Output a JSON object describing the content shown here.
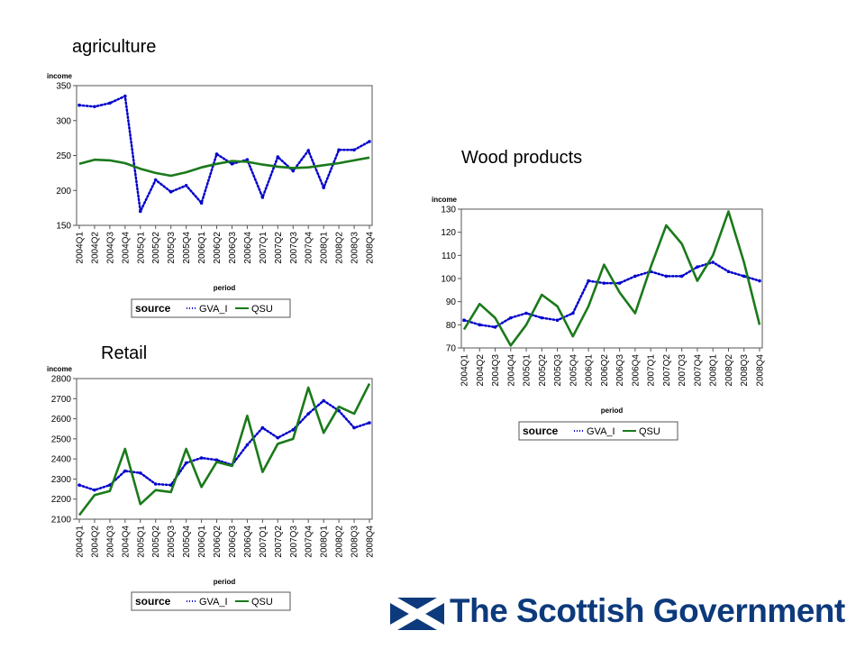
{
  "titles": {
    "agriculture": "agriculture",
    "wood": "Wood products",
    "retail": "Retail"
  },
  "logo": {
    "text": "The Scottish Government",
    "color": "#0d3a7c"
  },
  "colors": {
    "gva": "#0000cc",
    "qsu": "#1a7a1a"
  },
  "chart_data": [
    {
      "type": "line",
      "title": "agriculture",
      "ylabel": "income",
      "xlabel": "period",
      "categories": [
        "2004Q1",
        "2004Q2",
        "2004Q3",
        "2004Q4",
        "2005Q1",
        "2005Q2",
        "2005Q3",
        "2005Q4",
        "2006Q1",
        "2006Q2",
        "2006Q3",
        "2006Q4",
        "2007Q1",
        "2007Q2",
        "2007Q3",
        "2007Q4",
        "2008Q1",
        "2008Q2",
        "2008Q3",
        "2008Q4"
      ],
      "ylim": [
        150,
        350
      ],
      "yticks": [
        150,
        200,
        250,
        300,
        350
      ],
      "legend_title": "source",
      "series": [
        {
          "name": "GVA_I",
          "style": "dotted",
          "values": [
            322,
            320,
            325,
            335,
            170,
            215,
            198,
            207,
            182,
            252,
            238,
            244,
            190,
            248,
            228,
            257,
            204,
            258,
            258,
            270
          ]
        },
        {
          "name": "QSU",
          "style": "solid",
          "values": [
            238,
            244,
            243,
            239,
            231,
            225,
            221,
            226,
            233,
            238,
            242,
            241,
            237,
            234,
            232,
            233,
            236,
            239,
            243,
            247
          ]
        }
      ]
    },
    {
      "type": "line",
      "title": "Wood products",
      "ylabel": "income",
      "xlabel": "period",
      "categories": [
        "2004Q1",
        "2004Q2",
        "2004Q3",
        "2004Q4",
        "2005Q1",
        "2005Q2",
        "2005Q3",
        "2005Q4",
        "2006Q1",
        "2006Q2",
        "2006Q3",
        "2006Q4",
        "2007Q1",
        "2007Q2",
        "2007Q3",
        "2007Q4",
        "2008Q1",
        "2008Q2",
        "2008Q3",
        "2008Q4"
      ],
      "ylim": [
        70,
        130
      ],
      "yticks": [
        70,
        80,
        90,
        100,
        110,
        120,
        130
      ],
      "legend_title": "source",
      "series": [
        {
          "name": "GVA_I",
          "style": "dotted",
          "values": [
            82,
            80,
            79,
            83,
            85,
            83,
            82,
            85,
            99,
            98,
            98,
            101,
            103,
            101,
            101,
            105,
            107,
            103,
            101,
            99
          ]
        },
        {
          "name": "QSU",
          "style": "solid",
          "values": [
            78,
            89,
            83,
            71,
            80,
            93,
            88,
            75,
            88,
            106,
            94,
            85,
            105,
            123,
            115,
            99,
            110,
            129,
            107,
            80
          ]
        }
      ]
    },
    {
      "type": "line",
      "title": "Retail",
      "ylabel": "income",
      "xlabel": "period",
      "categories": [
        "2004Q1",
        "2004Q2",
        "2004Q3",
        "2004Q4",
        "2005Q1",
        "2005Q2",
        "2005Q3",
        "2005Q4",
        "2006Q1",
        "2006Q2",
        "2006Q3",
        "2006Q4",
        "2007Q1",
        "2007Q2",
        "2007Q3",
        "2007Q4",
        "2008Q1",
        "2008Q2",
        "2008Q3",
        "2008Q4"
      ],
      "ylim": [
        2100,
        2800
      ],
      "yticks": [
        2100,
        2200,
        2300,
        2400,
        2500,
        2600,
        2700,
        2800
      ],
      "legend_title": "source",
      "series": [
        {
          "name": "GVA_I",
          "style": "dotted",
          "values": [
            2270,
            2245,
            2270,
            2340,
            2330,
            2275,
            2270,
            2380,
            2405,
            2395,
            2370,
            2470,
            2555,
            2505,
            2545,
            2625,
            2690,
            2640,
            2555,
            2580
          ]
        },
        {
          "name": "QSU",
          "style": "solid",
          "values": [
            2120,
            2220,
            2240,
            2450,
            2175,
            2245,
            2235,
            2450,
            2260,
            2385,
            2365,
            2615,
            2335,
            2475,
            2500,
            2755,
            2530,
            2660,
            2625,
            2775
          ]
        }
      ]
    }
  ]
}
